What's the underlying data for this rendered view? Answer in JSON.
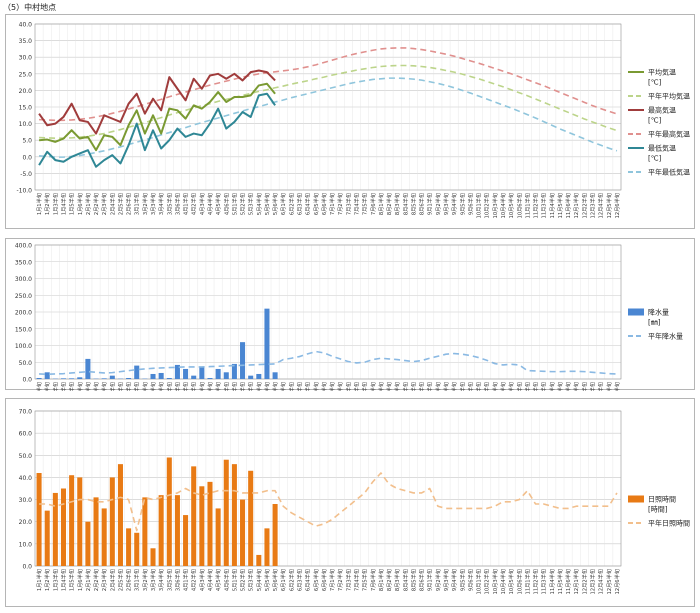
{
  "page_title": "（5）中村地点",
  "colors": {
    "temp_mean": "#7a9a32",
    "temp_mean_normal": "#bcd48a",
    "temp_max": "#a03c3c",
    "temp_max_normal": "#e0908e",
    "temp_min": "#2f8795",
    "temp_min_normal": "#8fc5dc",
    "precip": "#4a86d2",
    "precip_normal": "#8ab9e3",
    "sun": "#e87a14",
    "sun_normal": "#f2bf8c",
    "grid": "#c8c8c8"
  },
  "x_labels": [
    "1月1半旬",
    "1月2半旬",
    "1月3半旬",
    "1月4半旬",
    "1月5半旬",
    "1月6半旬",
    "2月1半旬",
    "2月2半旬",
    "2月3半旬",
    "2月4半旬",
    "2月5半旬",
    "2月6半旬",
    "3月1半旬",
    "3月2半旬",
    "3月3半旬",
    "3月4半旬",
    "3月5半旬",
    "3月6半旬",
    "4月1半旬",
    "4月2半旬",
    "4月3半旬",
    "4月4半旬",
    "4月5半旬",
    "4月6半旬",
    "5月1半旬",
    "5月2半旬",
    "5月3半旬",
    "5月4半旬",
    "5月5半旬",
    "5月6半旬",
    "6月1半旬",
    "6月2半旬",
    "6月3半旬",
    "6月4半旬",
    "6月5半旬",
    "6月6半旬",
    "7月1半旬",
    "7月2半旬",
    "7月3半旬",
    "7月4半旬",
    "7月5半旬",
    "7月6半旬",
    "8月1半旬",
    "8月2半旬",
    "8月3半旬",
    "8月4半旬",
    "8月5半旬",
    "8月6半旬",
    "9月1半旬",
    "9月2半旬",
    "9月3半旬",
    "9月4半旬",
    "9月5半旬",
    "9月6半旬",
    "10月1半旬",
    "10月2半旬",
    "10月3半旬",
    "10月4半旬",
    "10月5半旬",
    "10月6半旬",
    "11月1半旬",
    "11月2半旬",
    "11月3半旬",
    "11月4半旬",
    "11月5半旬",
    "11月6半旬",
    "12月1半旬",
    "12月2半旬",
    "12月3半旬",
    "12月4半旬",
    "12月5半旬",
    "12月6半旬"
  ],
  "chart_data": [
    {
      "type": "line",
      "ylim": [
        -10,
        40
      ],
      "yticks": [
        "40.0",
        "35.0",
        "30.0",
        "25.0",
        "20.0",
        "15.0",
        "10.0",
        "5.0",
        "0.0",
        "-5.0",
        "-10.0"
      ],
      "legend_position": "right",
      "legend": [
        {
          "label": "平均気温",
          "unit": "[℃]",
          "series": "mean"
        },
        {
          "label": "平年平均気温",
          "series": "mean_normal"
        },
        {
          "label": "最高気温",
          "unit": "[℃]",
          "series": "max"
        },
        {
          "label": "平年最高気温",
          "series": "max_normal"
        },
        {
          "label": "最低気温",
          "unit": "[℃]",
          "series": "min"
        },
        {
          "label": "平年最低気温",
          "series": "min_normal"
        }
      ],
      "series": {
        "mean": [
          5.0,
          5.2,
          4.5,
          5.5,
          8.0,
          5.5,
          6.0,
          2.0,
          6.5,
          6.0,
          3.5,
          9.5,
          14.0,
          7.0,
          12.5,
          7.0,
          14.5,
          14.0,
          11.5,
          15.5,
          14.5,
          16.5,
          19.5,
          16.5,
          18.0,
          18.0,
          18.5,
          21.5,
          22.0,
          19.0
        ],
        "max": [
          13.0,
          9.5,
          10.0,
          12.0,
          16.0,
          11.0,
          10.5,
          7.0,
          12.5,
          11.5,
          10.5,
          16.0,
          19.0,
          13.0,
          17.5,
          14.0,
          24.0,
          20.5,
          17.0,
          23.5,
          20.5,
          24.5,
          25.0,
          23.5,
          25.0,
          23.0,
          25.5,
          26.0,
          25.5,
          23.0
        ],
        "min": [
          -2.5,
          1.5,
          -1.0,
          -1.5,
          0.0,
          1.0,
          2.0,
          -3.0,
          -1.0,
          0.5,
          -2.0,
          3.5,
          10.0,
          2.0,
          8.0,
          2.5,
          5.0,
          8.5,
          6.0,
          7.0,
          6.5,
          10.0,
          14.5,
          8.5,
          10.5,
          13.5,
          12.0,
          18.5,
          19.0,
          15.5
        ],
        "mean_normal": [
          5.8,
          5.7,
          5.6,
          5.6,
          5.7,
          5.9,
          6.2,
          6.6,
          7.0,
          7.6,
          8.2,
          8.9,
          9.6,
          10.3,
          11.1,
          11.8,
          12.6,
          13.3,
          14.0,
          14.7,
          15.4,
          16.0,
          16.7,
          17.3,
          17.9,
          18.5,
          19.1,
          19.7,
          20.2,
          20.8,
          21.3,
          21.9,
          22.4,
          22.9,
          23.5,
          24.0,
          24.6,
          25.1,
          25.6,
          26.1,
          26.5,
          26.9,
          27.2,
          27.4,
          27.5,
          27.5,
          27.4,
          27.2,
          26.9,
          26.5,
          26.0,
          25.5,
          24.9,
          24.2,
          23.5,
          22.7,
          21.9,
          21.1,
          20.2,
          19.3,
          18.4,
          17.4,
          16.4,
          15.4,
          14.4,
          13.4,
          12.4,
          11.4,
          10.5,
          9.6,
          8.7,
          7.9
        ],
        "max_normal": [
          11.2,
          11.1,
          11.0,
          11.0,
          11.1,
          11.3,
          11.6,
          12.0,
          12.5,
          13.1,
          13.7,
          14.4,
          15.1,
          15.8,
          16.6,
          17.3,
          18.1,
          18.8,
          19.5,
          20.2,
          20.9,
          21.6,
          22.2,
          22.8,
          23.4,
          24.0,
          24.5,
          25.0,
          25.3,
          25.6,
          25.9,
          26.2,
          26.6,
          27.1,
          27.7,
          28.4,
          29.1,
          29.8,
          30.5,
          31.1,
          31.6,
          32.1,
          32.5,
          32.7,
          32.8,
          32.8,
          32.6,
          32.3,
          31.9,
          31.4,
          30.9,
          30.3,
          29.6,
          28.9,
          28.2,
          27.4,
          26.6,
          25.8,
          25.0,
          24.1,
          23.2,
          22.3,
          21.4,
          20.4,
          19.4,
          18.4,
          17.4,
          16.4,
          15.4,
          14.5,
          13.7,
          12.9
        ],
        "min_normal": [
          0.3,
          0.1,
          -0.1,
          -0.1,
          0.1,
          0.4,
          0.8,
          1.3,
          1.8,
          2.4,
          3.0,
          3.7,
          4.4,
          5.1,
          5.8,
          6.6,
          7.3,
          8.1,
          8.8,
          9.6,
          10.3,
          11.0,
          11.7,
          12.4,
          13.1,
          13.8,
          14.5,
          15.1,
          15.8,
          16.5,
          17.1,
          17.8,
          18.4,
          19.0,
          19.6,
          20.2,
          20.8,
          21.4,
          22.0,
          22.5,
          22.9,
          23.3,
          23.5,
          23.7,
          23.7,
          23.6,
          23.4,
          23.1,
          22.6,
          22.1,
          21.5,
          20.8,
          20.0,
          19.2,
          18.3,
          17.4,
          16.5,
          15.6,
          14.7,
          13.7,
          12.7,
          11.7,
          10.6,
          9.5,
          8.4,
          7.4,
          6.4,
          5.4,
          4.4,
          3.5,
          2.6,
          1.8
        ]
      }
    },
    {
      "type": "bar",
      "ylim": [
        0,
        400
      ],
      "yticks": [
        "400.0",
        "350.0",
        "300.0",
        "250.0",
        "200.0",
        "150.0",
        "100.0",
        "50.0",
        "0.0"
      ],
      "legend_position": "right",
      "legend": [
        {
          "label": "降水量",
          "unit": "[㎜]",
          "series": "bars"
        },
        {
          "label": "平年降水量",
          "series": "normal"
        }
      ],
      "bars": [
        3,
        20,
        1,
        2,
        2,
        5,
        60,
        1,
        2,
        10,
        1,
        3,
        40,
        1,
        15,
        18,
        3,
        42,
        30,
        10,
        35,
        3,
        30,
        20,
        45,
        110,
        10,
        15,
        210,
        20
      ],
      "normal": [
        15,
        14,
        15,
        16,
        18,
        20,
        22,
        20,
        18,
        19,
        22,
        25,
        28,
        30,
        32,
        33,
        34,
        35,
        36,
        36,
        36,
        37,
        38,
        39,
        40,
        41,
        42,
        43,
        44,
        45,
        58,
        62,
        67,
        75,
        82,
        78,
        68,
        60,
        52,
        48,
        50,
        58,
        62,
        60,
        58,
        55,
        52,
        55,
        62,
        68,
        74,
        76,
        74,
        70,
        64,
        56,
        46,
        42,
        44,
        42,
        25,
        24,
        23,
        22,
        22,
        23,
        23,
        22,
        20,
        18,
        16,
        15
      ]
    },
    {
      "type": "bar",
      "ylim": [
        0,
        70
      ],
      "yticks": [
        "70.0",
        "60.0",
        "50.0",
        "40.0",
        "30.0",
        "20.0",
        "10.0",
        "0.0"
      ],
      "legend_position": "right",
      "legend": [
        {
          "label": "日照時間",
          "unit": "[時間]",
          "series": "bars"
        },
        {
          "label": "平年日照時間",
          "series": "normal"
        }
      ],
      "bars": [
        42,
        25,
        33,
        35,
        41,
        40,
        20,
        31,
        26,
        40,
        46,
        17,
        15,
        31,
        8,
        32,
        49,
        32,
        23,
        45,
        36,
        38,
        26,
        48,
        46,
        30,
        43,
        5,
        17,
        28
      ],
      "normal": [
        28,
        28,
        27,
        28,
        29,
        30,
        30,
        29,
        29,
        30,
        31,
        30,
        16,
        31,
        30,
        31,
        32,
        33,
        35,
        33,
        32,
        33,
        34,
        34,
        34,
        33,
        33,
        33,
        34,
        34,
        27,
        24,
        22,
        20,
        18,
        19,
        21,
        24,
        27,
        30,
        33,
        38,
        42,
        37,
        35,
        34,
        33,
        33,
        35,
        27,
        26,
        26,
        26,
        26,
        26,
        26,
        27,
        29,
        29,
        30,
        34,
        28,
        28,
        27,
        26,
        26,
        27,
        27,
        27,
        27,
        27,
        33
      ]
    }
  ]
}
